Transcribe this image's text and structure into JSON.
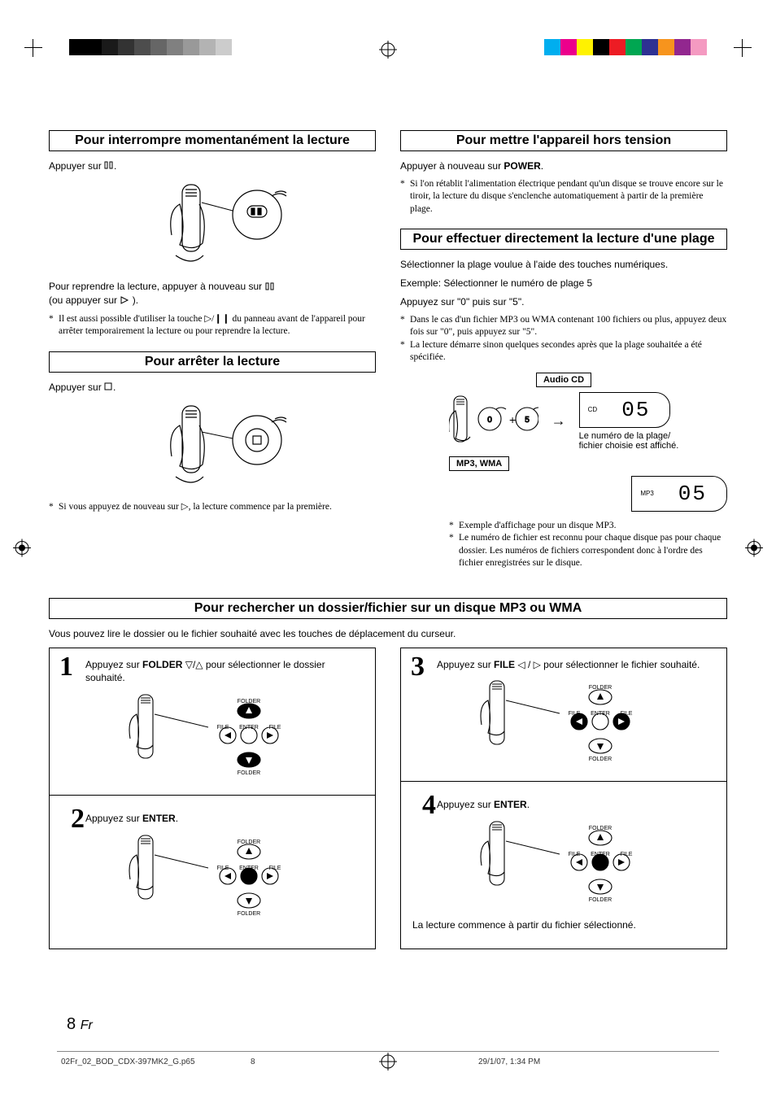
{
  "colorbars": {
    "left": [
      "#000000",
      "#000000",
      "#1a1a1a",
      "#333333",
      "#4d4d4d",
      "#666666",
      "#808080",
      "#999999",
      "#b3b3b3",
      "#cccccc"
    ],
    "right": [
      "#00aeef",
      "#ec008c",
      "#fff200",
      "#000000",
      "#ed1c24",
      "#00a651",
      "#2e3192",
      "#f7941d",
      "#92278f",
      "#f49ac1"
    ]
  },
  "sections": {
    "pause": {
      "title": "Pour interrompre momentanément la lecture",
      "press": "Appuyer sur ",
      "resume": "Pour reprendre la lecture, appuyer à nouveau sur ",
      "resume_tail": "(ou appuyer sur ",
      "resume_tail2": ").",
      "note": "Il est aussi possible d'utiliser la touche ▷/❙❙ du panneau avant de l'appareil pour arrêter temporairement la lecture ou pour reprendre la lecture."
    },
    "stop": {
      "title": "Pour arrêter la lecture",
      "press": "Appuyer sur ",
      "note": "Si vous appuyez de nouveau sur ▷, la lecture commence par la première."
    },
    "power": {
      "title": "Pour mettre l'appareil hors tension",
      "press_pre": "Appuyer à nouveau sur ",
      "press_bold": "POWER",
      "press_post": ".",
      "note": "Si l'on rétablit l'alimentation électrique pendant qu'un disque se trouve encore sur le tiroir, la lecture du disque s'enclenche automatiquement à partir de la première plage."
    },
    "direct": {
      "title": "Pour effectuer directement la lecture d'une plage",
      "select": "Sélectionner la plage voulue à l'aide des touches numériques.",
      "example": "Exemple: Sélectionner le numéro de plage 5",
      "press": "Appuyez sur \"0\" puis sur \"5\".",
      "note1": "Dans le cas  d'un fichier MP3 ou WMA contenant 100 fichiers ou plus, appuyez deux fois sur \"0\", puis appuyez sur \"5\".",
      "note2": "La lecture démarre sinon quelques secondes après que la plage souhaitée a été spécifiée.",
      "audio_cd_label": "Audio CD",
      "mp3_label": "MP3, WMA",
      "disp_cd_small": "CD",
      "disp_mp3_small": "MP3",
      "seg": "05",
      "caption": "Le numéro de la plage/\nfichier choisie est affiché.",
      "fn1": "Exemple d'affichage pour un disque MP3.",
      "fn2": "Le numéro de fichier est reconnu pour chaque disque pas pour chaque dossier. Les numéros de fichiers correspondent donc à l'ordre des fichier enregistrées sur le disque."
    },
    "search": {
      "title": "Pour rechercher un dossier/fichier sur un disque MP3 ou WMA",
      "intro": "Vous pouvez lire le dossier ou le fichier souhaité avec les touches de déplacement du curseur.",
      "step1_pre": "Appuyez sur ",
      "step1_bold": "FOLDER",
      "step1_post": " ▽/△ pour sélectionner le dossier souhaité.",
      "step2_pre": "Appuyez sur ",
      "step2_bold": "ENTER",
      "step2_post": ".",
      "step3_pre": "Appuyez sur ",
      "step3_bold": "FILE",
      "step3_post": " ◁ / ▷ pour sélectionner le fichier souhaité.",
      "step4_pre": "Appuyez sur ",
      "step4_bold": "ENTER",
      "step4_post": ".",
      "step4_end": "La lecture commence à partir du fichier sélectionné."
    }
  },
  "remote_labels": {
    "folder": "FOLDER",
    "file": "FILE",
    "enter": "ENTER"
  },
  "page": {
    "num": "8",
    "lang": "Fr"
  },
  "footer": {
    "file": "02Fr_02_BOD_CDX-397MK2_G.p65",
    "page": "8",
    "date": "29/1/07, 1:34 PM"
  }
}
